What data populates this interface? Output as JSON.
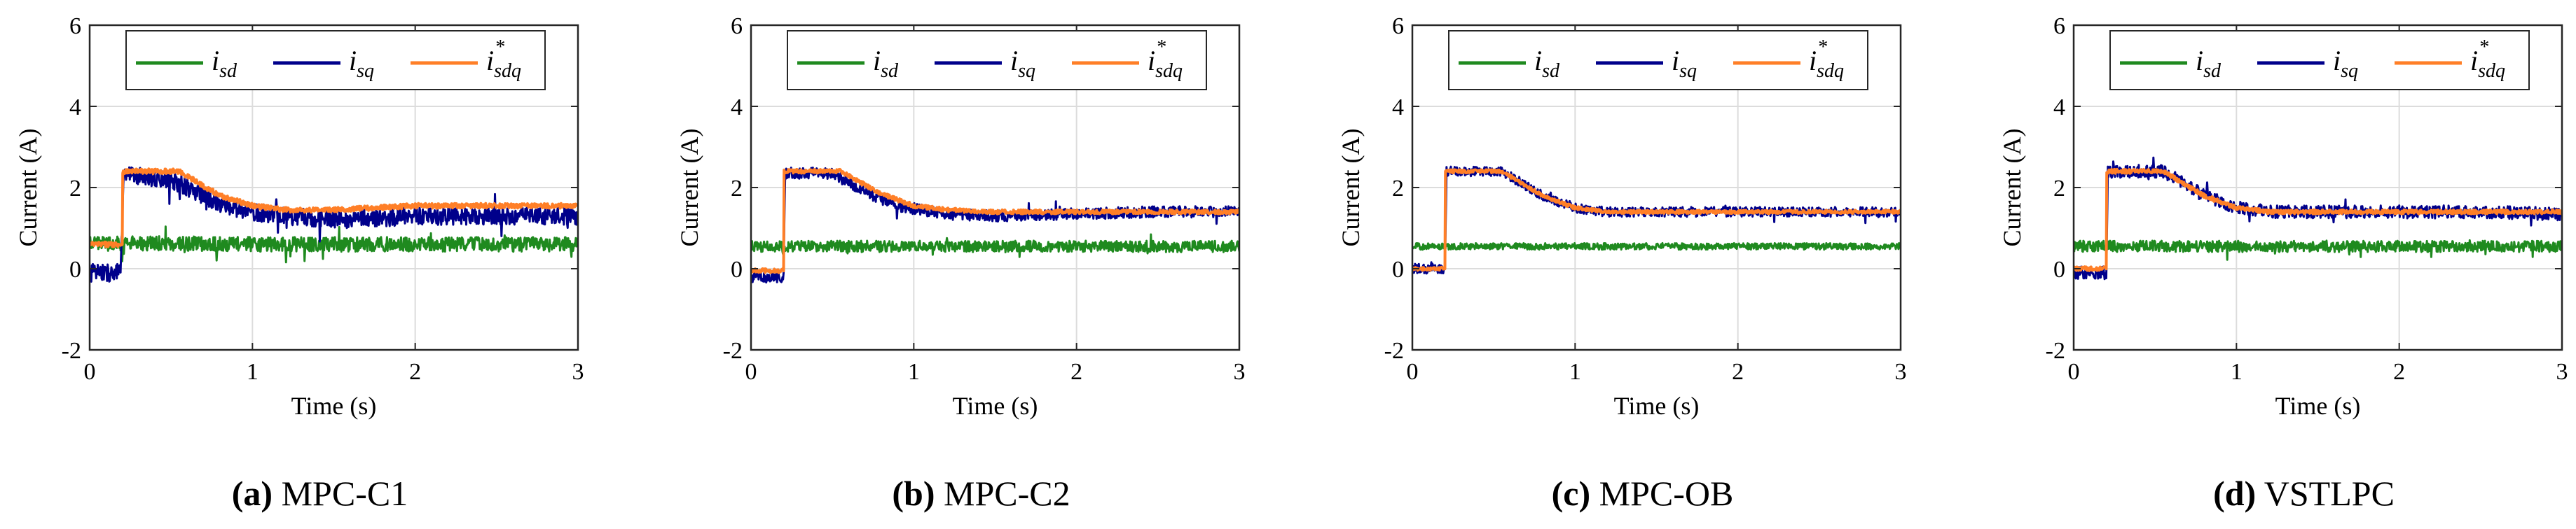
{
  "chart_data": [
    {
      "type": "line",
      "letter": "(a)",
      "caption": "MPC-C1",
      "xlabel": "Time (s)",
      "ylabel": "Current (A)",
      "xlim": [
        0,
        3
      ],
      "ylim": [
        -2,
        6
      ],
      "xticks": [
        0,
        1,
        2,
        3
      ],
      "yticks": [
        -2,
        0,
        2,
        4,
        6
      ],
      "grid": true,
      "legend_position": "top",
      "series": [
        {
          "name": "i_sd",
          "label_main": "i",
          "label_sub": "sd",
          "label_sup": "",
          "color": "#1f8a1f",
          "x": [
            0,
            0.2,
            0.5,
            1.0,
            1.5,
            2.0,
            2.5,
            3.0
          ],
          "y": [
            0.62,
            0.62,
            0.62,
            0.6,
            0.6,
            0.6,
            0.6,
            0.6
          ],
          "noise": 0.18
        },
        {
          "name": "i_sq",
          "label_main": "i",
          "label_sub": "sq",
          "label_sup": "",
          "color": "#00008b",
          "x": [
            0,
            0.19,
            0.21,
            0.5,
            0.7,
            0.9,
            1.2,
            1.5,
            2.0,
            2.5,
            3.0
          ],
          "y": [
            -0.1,
            -0.1,
            2.3,
            2.2,
            1.8,
            1.45,
            1.3,
            1.2,
            1.3,
            1.3,
            1.3
          ],
          "noise": 0.22
        },
        {
          "name": "i_sdq*",
          "label_main": "i",
          "label_sub": "sdq",
          "label_sup": "*",
          "color": "#ff7f27",
          "x": [
            0,
            0.2,
            0.201,
            0.55,
            0.8,
            1.0,
            1.2,
            1.5,
            2.0,
            2.5,
            3.0
          ],
          "y": [
            0.6,
            0.6,
            2.4,
            2.4,
            1.8,
            1.55,
            1.45,
            1.45,
            1.55,
            1.55,
            1.55
          ],
          "noise": 0.06
        }
      ]
    },
    {
      "type": "line",
      "letter": "(b)",
      "caption": "MPC-C2",
      "xlabel": "Time (s)",
      "ylabel": "Current (A)",
      "xlim": [
        0,
        3
      ],
      "ylim": [
        -2,
        6
      ],
      "xticks": [
        0,
        1,
        2,
        3
      ],
      "yticks": [
        -2,
        0,
        2,
        4,
        6
      ],
      "grid": true,
      "legend_position": "top",
      "series": [
        {
          "name": "i_sd",
          "label_main": "i",
          "label_sub": "sd",
          "label_sup": "",
          "color": "#1f8a1f",
          "x": [
            0,
            0.2,
            0.5,
            1.0,
            1.5,
            2.0,
            2.5,
            3.0
          ],
          "y": [
            0.55,
            0.55,
            0.55,
            0.55,
            0.55,
            0.55,
            0.55,
            0.55
          ],
          "noise": 0.14
        },
        {
          "name": "i_sq",
          "label_main": "i",
          "label_sub": "sq",
          "label_sup": "",
          "color": "#00008b",
          "x": [
            0,
            0.2,
            0.21,
            0.5,
            0.7,
            0.9,
            1.2,
            1.5,
            2.0,
            2.5,
            3.0
          ],
          "y": [
            -0.2,
            -0.2,
            2.35,
            2.35,
            1.9,
            1.55,
            1.35,
            1.3,
            1.35,
            1.4,
            1.4
          ],
          "noise": 0.14
        },
        {
          "name": "i_sdq*",
          "label_main": "i",
          "label_sub": "sdq",
          "label_sup": "*",
          "color": "#ff7f27",
          "x": [
            0,
            0.2,
            0.201,
            0.55,
            0.8,
            1.0,
            1.2,
            1.5,
            2.0,
            2.5,
            3.0
          ],
          "y": [
            -0.05,
            -0.05,
            2.4,
            2.4,
            1.85,
            1.55,
            1.45,
            1.4,
            1.4,
            1.4,
            1.4
          ],
          "noise": 0.05
        }
      ]
    },
    {
      "type": "line",
      "letter": "(c)",
      "caption": "MPC-OB",
      "xlabel": "Time (s)",
      "ylabel": "Current (A)",
      "xlim": [
        0,
        3
      ],
      "ylim": [
        -2,
        6
      ],
      "xticks": [
        0,
        1,
        2,
        3
      ],
      "yticks": [
        -2,
        0,
        2,
        4,
        6
      ],
      "grid": true,
      "legend_position": "top",
      "series": [
        {
          "name": "i_sd",
          "label_main": "i",
          "label_sub": "sd",
          "label_sup": "",
          "color": "#1f8a1f",
          "x": [
            0,
            0.2,
            0.5,
            1.0,
            1.5,
            2.0,
            2.5,
            3.0
          ],
          "y": [
            0.55,
            0.55,
            0.55,
            0.55,
            0.55,
            0.55,
            0.55,
            0.55
          ],
          "noise": 0.08
        },
        {
          "name": "i_sq",
          "label_main": "i",
          "label_sub": "sq",
          "label_sup": "",
          "color": "#00008b",
          "x": [
            0,
            0.2,
            0.21,
            0.55,
            0.8,
            1.0,
            1.2,
            1.5,
            2.0,
            2.5,
            3.0
          ],
          "y": [
            0.0,
            0.0,
            2.4,
            2.4,
            1.8,
            1.5,
            1.4,
            1.4,
            1.4,
            1.4,
            1.4
          ],
          "noise": 0.12
        },
        {
          "name": "i_sdq*",
          "label_main": "i",
          "label_sub": "sdq",
          "label_sup": "*",
          "color": "#ff7f27",
          "x": [
            0,
            0.2,
            0.201,
            0.55,
            0.8,
            1.0,
            1.2,
            1.5,
            2.0,
            2.5,
            3.0
          ],
          "y": [
            0.0,
            0.0,
            2.4,
            2.4,
            1.8,
            1.5,
            1.4,
            1.4,
            1.4,
            1.4,
            1.4
          ],
          "noise": 0.04
        }
      ]
    },
    {
      "type": "line",
      "letter": "(d)",
      "caption": "VSTLPC",
      "xlabel": "Time (s)",
      "ylabel": "Current (A)",
      "xlim": [
        0,
        3
      ],
      "ylim": [
        -2,
        6
      ],
      "xticks": [
        0,
        1,
        2,
        3
      ],
      "yticks": [
        -2,
        0,
        2,
        4,
        6
      ],
      "grid": true,
      "legend_position": "top",
      "series": [
        {
          "name": "i_sd",
          "label_main": "i",
          "label_sub": "sd",
          "label_sup": "",
          "color": "#1f8a1f",
          "x": [
            0,
            0.2,
            0.5,
            1.0,
            1.5,
            2.0,
            2.5,
            3.0
          ],
          "y": [
            0.55,
            0.55,
            0.55,
            0.55,
            0.55,
            0.55,
            0.55,
            0.55
          ],
          "noise": 0.14
        },
        {
          "name": "i_sq",
          "label_main": "i",
          "label_sub": "sq",
          "label_sup": "",
          "color": "#00008b",
          "x": [
            0,
            0.2,
            0.21,
            0.55,
            0.8,
            1.0,
            1.2,
            1.5,
            2.0,
            2.5,
            3.0
          ],
          "y": [
            -0.1,
            -0.1,
            2.4,
            2.4,
            1.8,
            1.5,
            1.4,
            1.4,
            1.4,
            1.4,
            1.35
          ],
          "noise": 0.16
        },
        {
          "name": "i_sdq*",
          "label_main": "i",
          "label_sub": "sdq",
          "label_sup": "*",
          "color": "#ff7f27",
          "x": [
            0,
            0.2,
            0.201,
            0.55,
            0.8,
            1.0,
            1.2,
            1.5,
            2.0,
            2.5,
            3.0
          ],
          "y": [
            0.0,
            0.0,
            2.4,
            2.4,
            1.8,
            1.5,
            1.4,
            1.4,
            1.4,
            1.4,
            1.4
          ],
          "noise": 0.05
        }
      ]
    }
  ]
}
